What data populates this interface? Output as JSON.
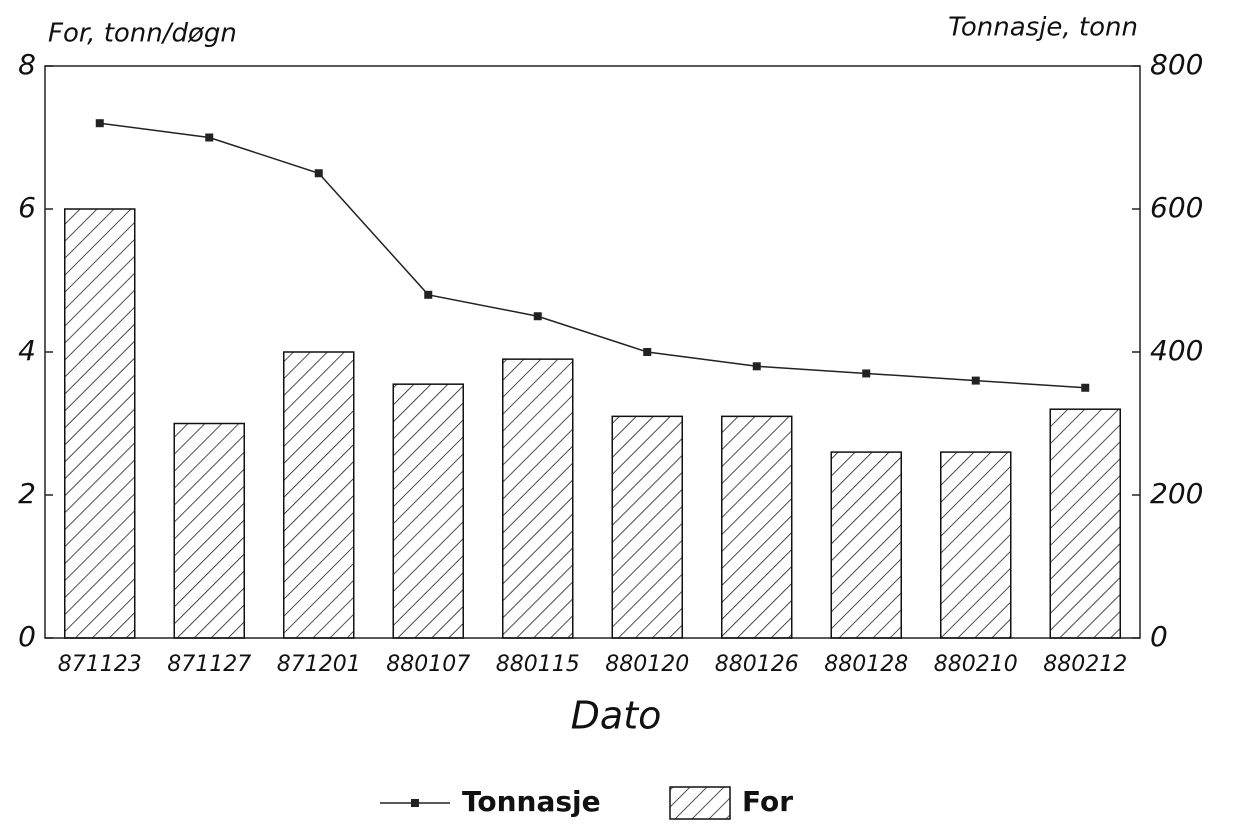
{
  "chart_data": {
    "type": "bar",
    "y_label": "For, tonn/døgn",
    "y2_label": "Tonnasje, tonn",
    "x_label": "Dato",
    "categories": [
      "871123",
      "871127",
      "871201",
      "880107",
      "880115",
      "880120",
      "880126",
      "880128",
      "880210",
      "880212"
    ],
    "series": [
      {
        "name": "Tonnasje",
        "type": "line",
        "axis": "y2",
        "color": "#222222",
        "values": [
          720,
          700,
          650,
          480,
          450,
          400,
          380,
          370,
          360,
          350
        ]
      },
      {
        "name": "For",
        "type": "bar",
        "color": "#111111",
        "values": [
          6.0,
          3.0,
          4.0,
          3.55,
          3.9,
          3.1,
          3.1,
          2.6,
          2.6,
          3.2
        ]
      }
    ],
    "ylim": [
      0,
      8
    ],
    "yticks": [
      0,
      2,
      4,
      6,
      8
    ],
    "y2lim": [
      0,
      800
    ],
    "y2ticks": [
      0,
      200,
      400,
      600,
      800
    ]
  }
}
